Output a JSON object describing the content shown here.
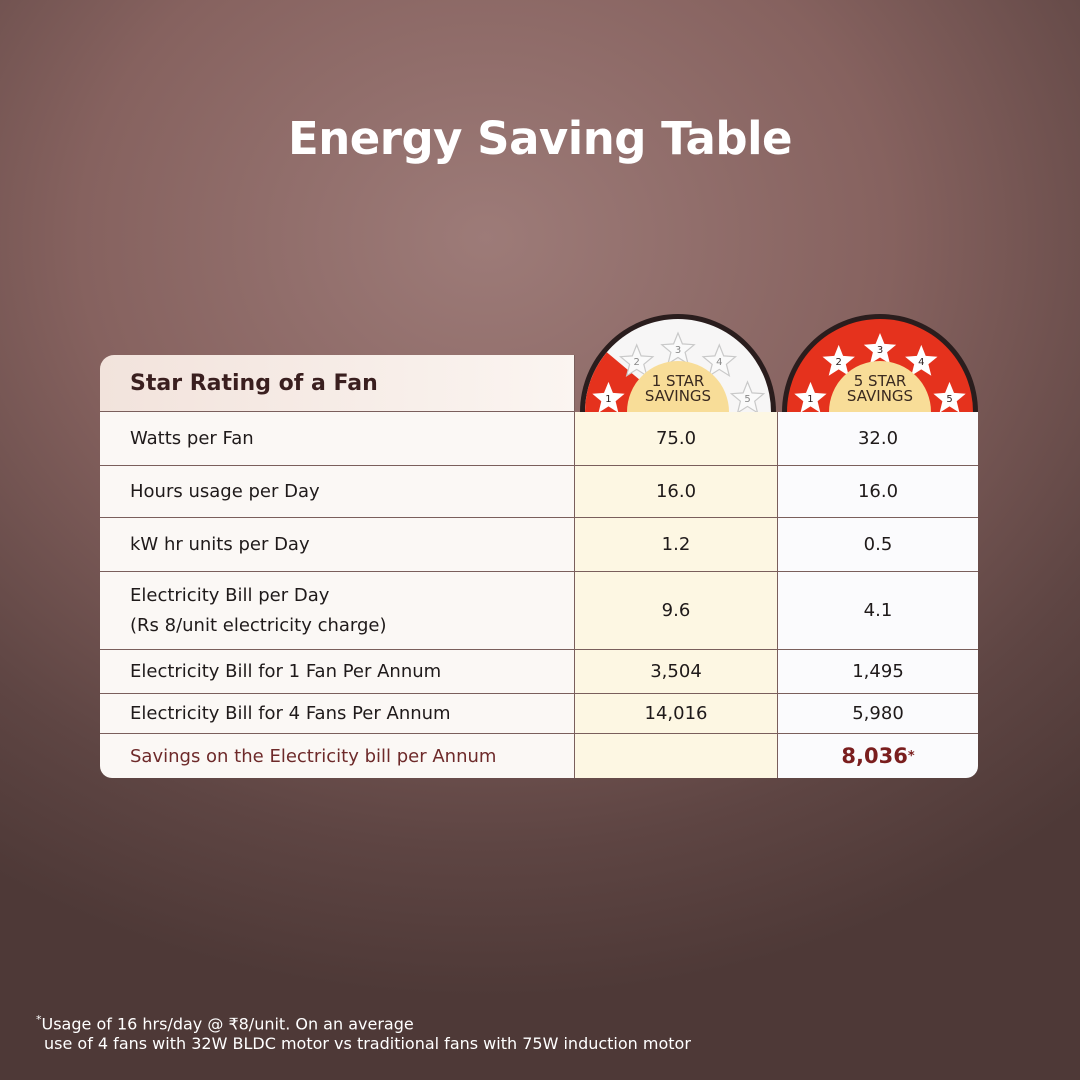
{
  "title": "Energy Saving Table",
  "table": {
    "header": "Star Rating of a Fan",
    "columns": [
      {
        "badge_lines": [
          "1 STAR",
          "SAVINGS"
        ],
        "star_numbers": [
          "1",
          "2",
          "3",
          "4",
          "5"
        ]
      },
      {
        "badge_lines": [
          "5 STAR",
          "SAVINGS"
        ],
        "star_numbers": [
          "1",
          "2",
          "3",
          "4",
          "5"
        ]
      }
    ],
    "rows": [
      {
        "label": [
          "Watts per Fan"
        ],
        "one_star": "75.0",
        "five_star": "32.0"
      },
      {
        "label": [
          "Hours usage per Day"
        ],
        "one_star": "16.0",
        "five_star": "16.0"
      },
      {
        "label": [
          "kW hr units per Day"
        ],
        "one_star": "1.2",
        "five_star": "0.5"
      },
      {
        "label": [
          "Electricity Bill per Day",
          "(Rs 8/unit electricity charge)"
        ],
        "one_star": "9.6",
        "five_star": "4.1"
      },
      {
        "label": [
          "Electricity Bill for 1 Fan Per Annum"
        ],
        "one_star": "3,504",
        "five_star": "1,495"
      },
      {
        "label": [
          "Electricity Bill for 4 Fans Per Annum"
        ],
        "one_star": "14,016",
        "five_star": "5,980"
      },
      {
        "label": [
          "Savings on the Electricity bill per Annum"
        ],
        "five_star": "8,036",
        "mark": "*"
      }
    ]
  },
  "footnote": {
    "mark": "*",
    "lines": [
      "Usage of 16 hrs/day @ ₹8/unit. On an average",
      "use of 4 fans with 32W BLDC motor vs traditional fans with 75W induction motor"
    ]
  }
}
